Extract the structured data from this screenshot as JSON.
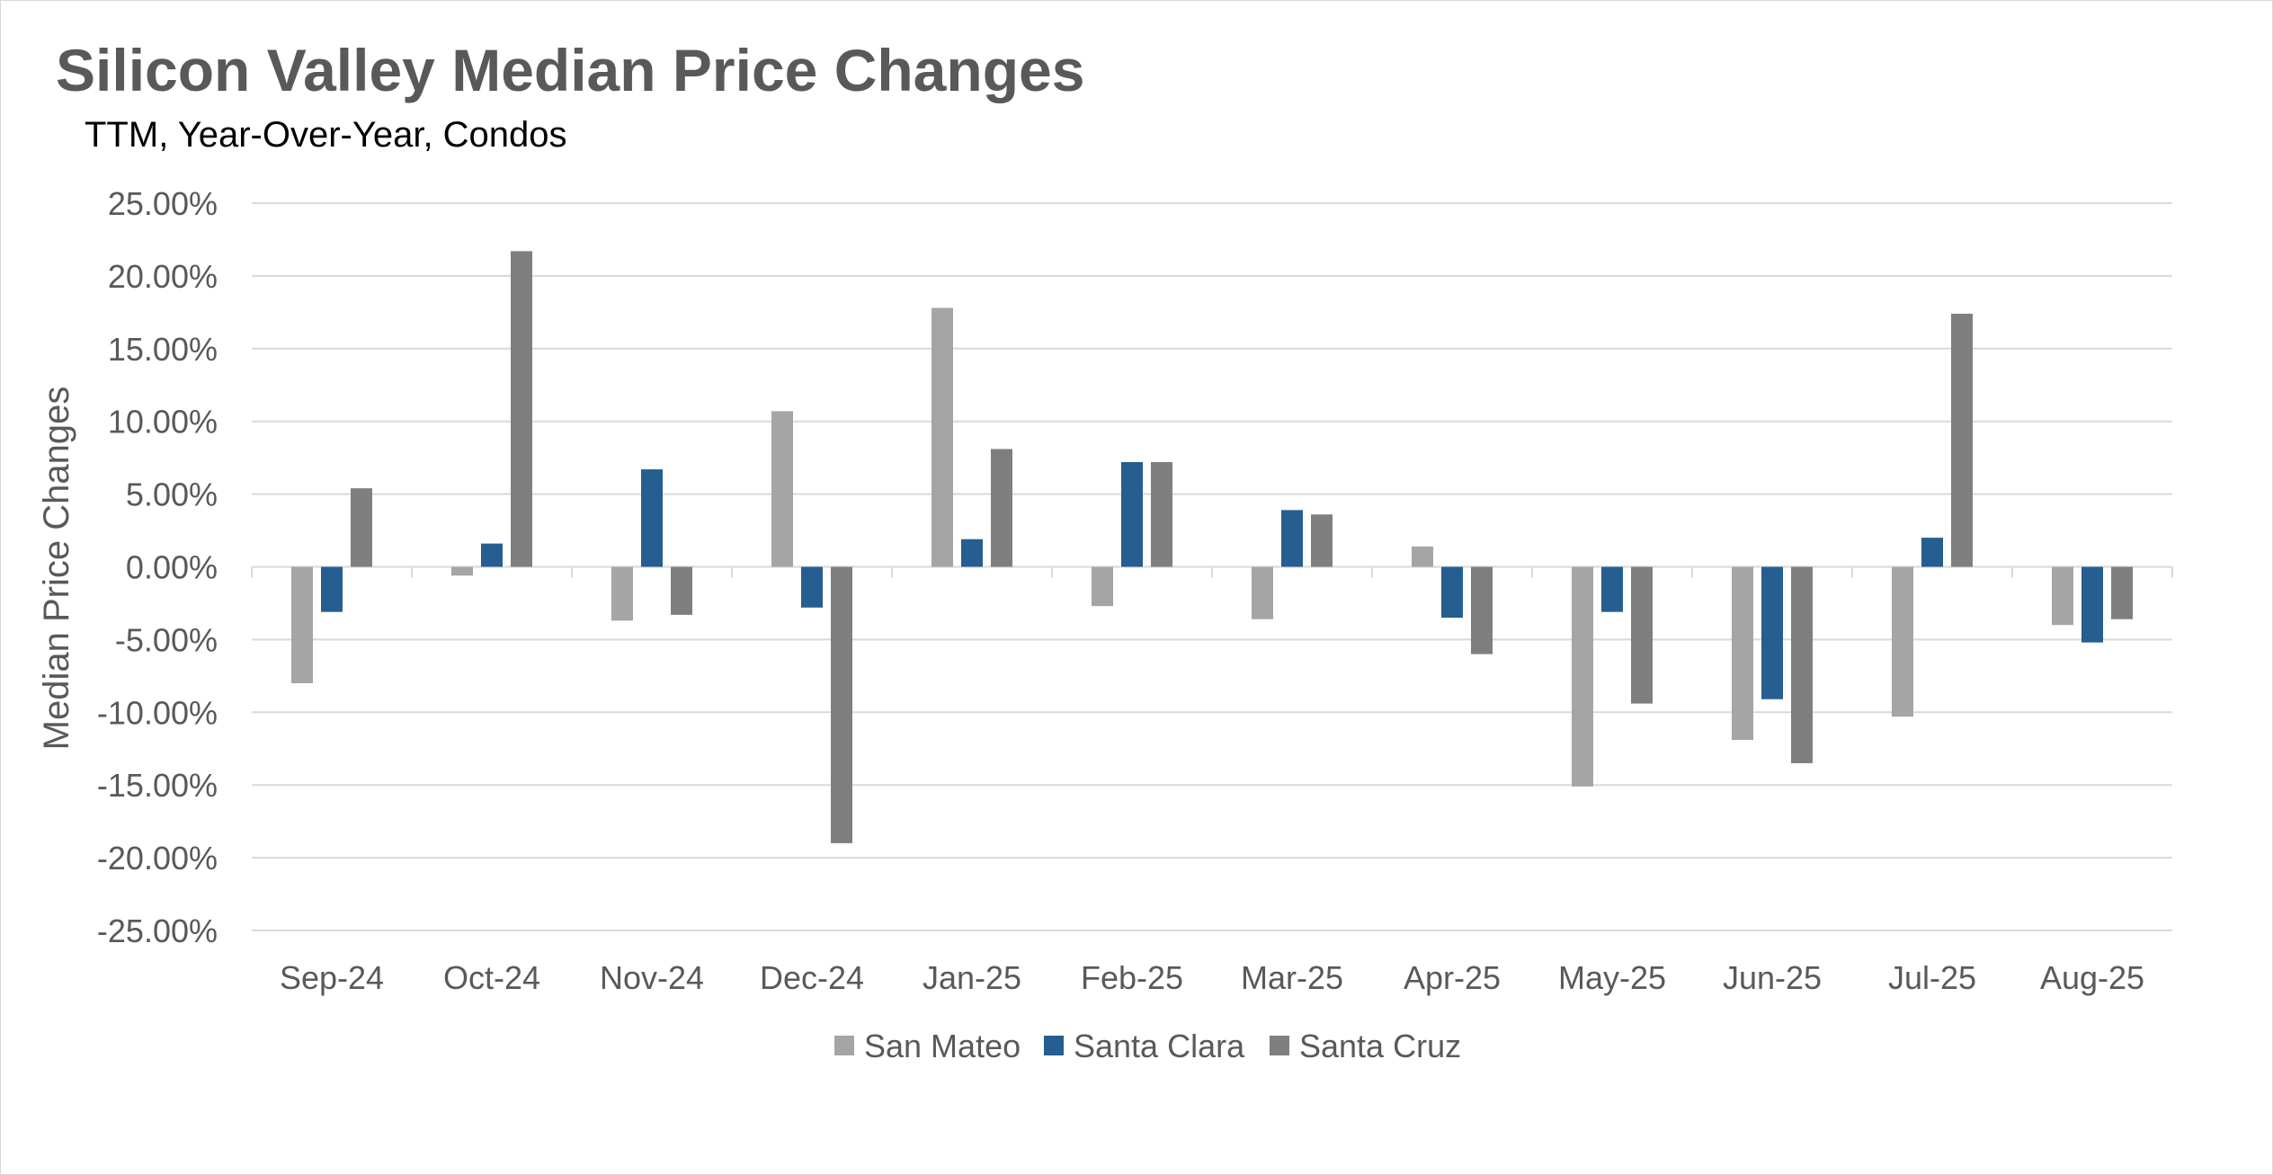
{
  "chart_data": {
    "type": "bar",
    "title": "Silicon Valley Median Price Changes",
    "subtitle": "TTM, Year-Over-Year,  Condos",
    "ylabel": "Median Price Changes",
    "xlabel": "",
    "categories": [
      "Sep-24",
      "Oct-24",
      "Nov-24",
      "Dec-24",
      "Jan-25",
      "Feb-25",
      "Mar-25",
      "Apr-25",
      "May-25",
      "Jun-25",
      "Jul-25",
      "Aug-25"
    ],
    "series": [
      {
        "name": "San Mateo",
        "color": "#a5a5a5",
        "values": [
          -8.0,
          -0.6,
          -3.7,
          10.7,
          17.8,
          -2.7,
          -3.6,
          1.4,
          -15.1,
          -11.9,
          -10.3,
          -4.0
        ]
      },
      {
        "name": "Santa Clara",
        "color": "#255e91",
        "values": [
          -3.1,
          1.6,
          6.7,
          -2.8,
          1.9,
          7.2,
          3.9,
          -3.5,
          -3.1,
          -9.1,
          2.0,
          -5.2
        ]
      },
      {
        "name": "Santa Cruz",
        "color": "#7f7f7f",
        "values": [
          5.4,
          21.7,
          -3.3,
          -19.0,
          8.1,
          7.2,
          3.6,
          -6.0,
          -9.4,
          -13.5,
          17.4,
          -3.6
        ]
      }
    ],
    "ylim": [
      -25,
      25
    ],
    "yticks": [
      25,
      20,
      15,
      10,
      5,
      0,
      -5,
      -10,
      -15,
      -20,
      -25
    ],
    "ytick_labels": [
      "25.00%",
      "20.00%",
      "15.00%",
      "10.00%",
      "5.00%",
      "0.00%",
      "-5.00%",
      "-10.00%",
      "-15.00%",
      "-20.00%",
      "-25.00%"
    ],
    "grid": true,
    "legend_position": "bottom"
  }
}
